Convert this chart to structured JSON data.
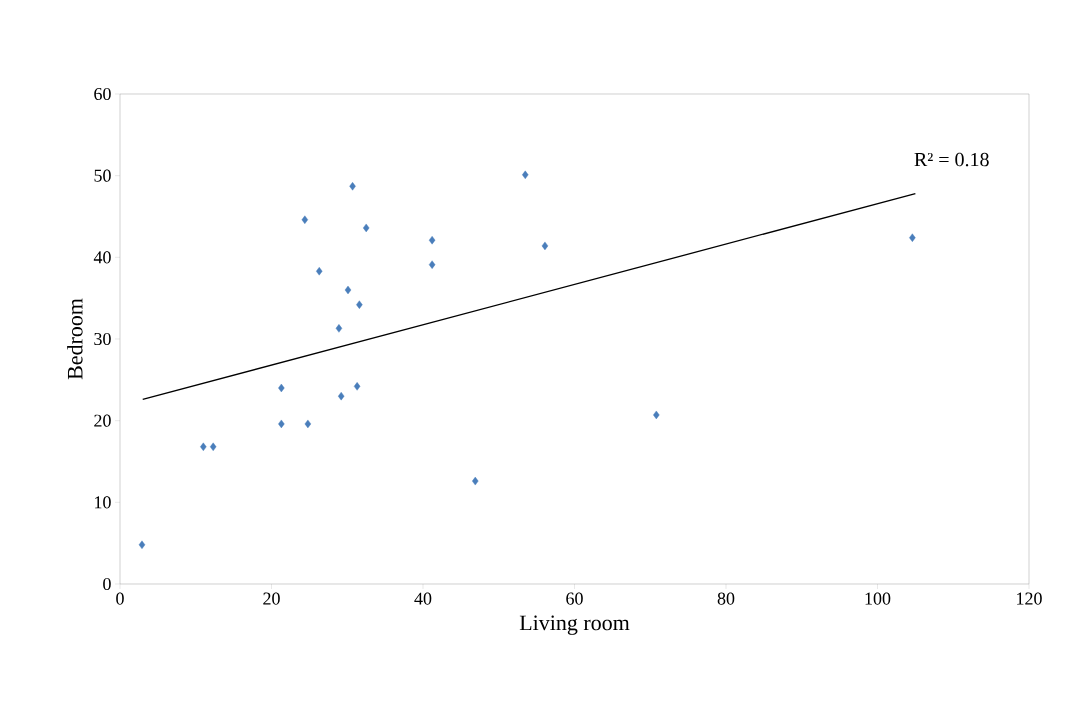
{
  "chart_data": {
    "type": "scatter",
    "xlabel": "Living room",
    "ylabel": "Bedroom",
    "xlim": [
      0,
      120
    ],
    "ylim": [
      0,
      60
    ],
    "xticks": [
      0,
      20,
      40,
      60,
      80,
      100,
      120
    ],
    "yticks": [
      0,
      10,
      20,
      30,
      40,
      50,
      60
    ],
    "grid": false,
    "marker": "diamond",
    "series": [
      {
        "color": "#4a7ebb",
        "x": [
          2.9,
          11.0,
          12.3,
          21.3,
          21.3,
          24.8,
          24.4,
          26.3,
          28.9,
          29.2,
          30.1,
          30.7,
          31.3,
          31.6,
          32.5,
          41.2,
          41.2,
          46.9,
          53.5,
          56.1,
          70.8,
          104.6
        ],
        "values": [
          4.8,
          16.8,
          16.8,
          19.6,
          24.0,
          19.6,
          44.6,
          38.3,
          31.3,
          23.0,
          36.0,
          48.7,
          24.2,
          34.2,
          43.6,
          42.1,
          39.1,
          12.6,
          50.1,
          41.4,
          20.7,
          42.4
        ]
      },
      {
        "type": "line",
        "color": "#000000",
        "marker": "none",
        "x": [
          3,
          105
        ],
        "values": [
          22.6,
          47.8
        ]
      }
    ],
    "annotations": [
      "R² = 0.18"
    ]
  }
}
